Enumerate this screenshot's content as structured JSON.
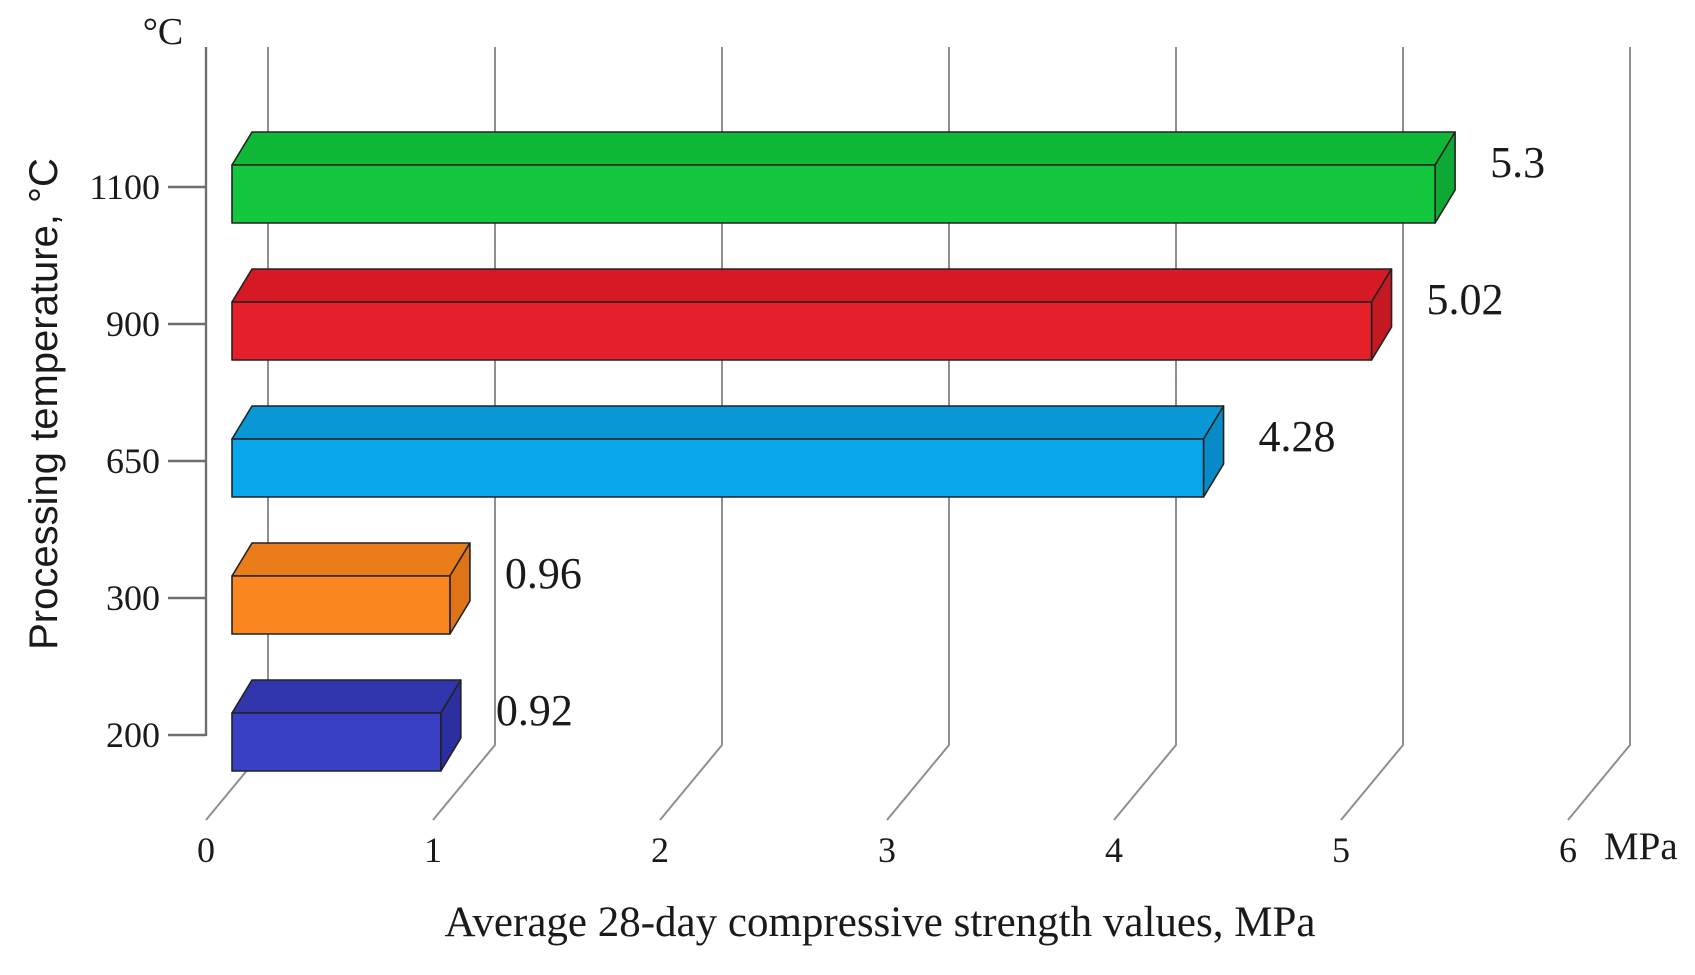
{
  "figure": {
    "background": "#FFFFFF"
  },
  "chart_data": {
    "type": "bar",
    "orientation": "horizontal",
    "style": "3d-box",
    "title": "",
    "xlabel": "Average 28-day compressive strength values, MPa",
    "ylabel": "Processing temperature, °C",
    "x_unit": "MPa",
    "y_unit_label": "°C",
    "xlim": [
      0,
      6
    ],
    "x_ticks": [
      "0",
      "1",
      "2",
      "3",
      "4",
      "5",
      "6"
    ],
    "grid": true,
    "legend": false,
    "categories": [
      "1100",
      "900",
      "650",
      "300",
      "200"
    ],
    "values": [
      5.3,
      5.02,
      4.28,
      0.96,
      0.92
    ],
    "bars": [
      {
        "category": "1100",
        "value": 5.3,
        "label": "5.3",
        "colors": {
          "front": "#15C63F",
          "top": "#10B837",
          "side": "#0EA833"
        }
      },
      {
        "category": "900",
        "value": 5.02,
        "label": "5.02",
        "colors": {
          "front": "#E5202A",
          "top": "#D61A25",
          "side": "#C41822"
        }
      },
      {
        "category": "650",
        "value": 4.28,
        "label": "4.28",
        "colors": {
          "front": "#0AA7EB",
          "top": "#0997D6",
          "side": "#088AC6"
        }
      },
      {
        "category": "300",
        "value": 0.96,
        "label": "0.96",
        "colors": {
          "front": "#F9861E",
          "top": "#EB7C1A",
          "side": "#DE7318"
        }
      },
      {
        "category": "200",
        "value": 0.92,
        "label": "0.92",
        "colors": {
          "front": "#3A40C6",
          "top": "#3136AC",
          "side": "#2B2FA0"
        }
      }
    ],
    "colors": {
      "grid": "#8F8F8F",
      "axis": "#6E6E6E",
      "text": "#1A1A1A",
      "bar_outline": "#222222"
    }
  }
}
